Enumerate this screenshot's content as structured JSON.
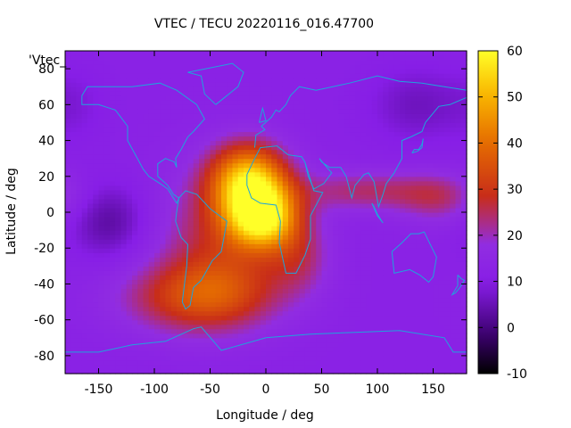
{
  "chart_data": {
    "type": "heatmap",
    "title": "VTEC / TECU 20220116_016.47700",
    "xlabel": "Longitude / deg",
    "ylabel": "Latitude / deg",
    "key_label": "'Vtec_",
    "xlim": [
      -180,
      180
    ],
    "ylim": [
      -90,
      90
    ],
    "xticks": [
      -150,
      -100,
      -50,
      0,
      50,
      100,
      150
    ],
    "yticks": [
      -80,
      -60,
      -40,
      -20,
      0,
      20,
      40,
      60,
      80
    ],
    "colorbar": {
      "range": [
        -10,
        60
      ],
      "ticks": [
        -10,
        0,
        10,
        20,
        30,
        40,
        50,
        60
      ]
    },
    "background_level": 12,
    "features": [
      {
        "lon": -15,
        "lat": 18,
        "sigma_lon": 24,
        "sigma_lat": 14,
        "amp": 38
      },
      {
        "lon": -3,
        "lat": -3,
        "sigma_lon": 22,
        "sigma_lat": 12,
        "amp": 40
      },
      {
        "lon": -40,
        "lat": -15,
        "sigma_lon": 40,
        "sigma_lat": 28,
        "amp": 14
      },
      {
        "lon": -75,
        "lat": -48,
        "sigma_lon": 45,
        "sigma_lat": 14,
        "amp": 12
      },
      {
        "lon": -40,
        "lat": -45,
        "sigma_lon": 40,
        "sigma_lat": 14,
        "amp": 10
      },
      {
        "lon": 30,
        "lat": -25,
        "sigma_lon": 20,
        "sigma_lat": 15,
        "amp": 10
      },
      {
        "lon": 90,
        "lat": 12,
        "sigma_lon": 45,
        "sigma_lat": 8,
        "amp": 12
      },
      {
        "lon": 155,
        "lat": 8,
        "sigma_lon": 25,
        "sigma_lat": 10,
        "amp": 10
      },
      {
        "lon": -140,
        "lat": -5,
        "sigma_lon": 25,
        "sigma_lat": 15,
        "amp": -9
      },
      {
        "lon": 135,
        "lat": 60,
        "sigma_lon": 30,
        "sigma_lat": 15,
        "amp": -6
      },
      {
        "lon": -170,
        "lat": 60,
        "sigma_lon": 20,
        "sigma_lat": 15,
        "amp": -3
      }
    ]
  }
}
